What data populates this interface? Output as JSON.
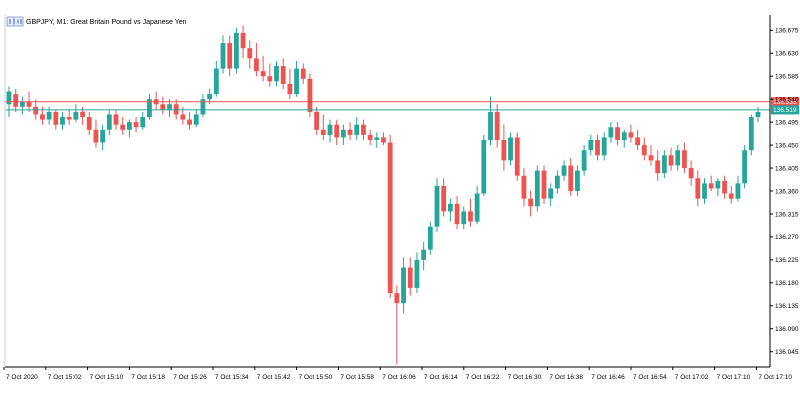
{
  "window": {
    "title": "GBPJPY, M1:  Great Britain Pound vs Japanese Yen"
  },
  "colors": {
    "bull": "#26a69a",
    "bear": "#ef5350",
    "background": "#ffffff",
    "axis": "#000000",
    "ask_line": "#ef5350",
    "bid_line": "#26a69a"
  },
  "chart_data": {
    "type": "candlestick",
    "symbol": "GBPJPY",
    "timeframe": "M1",
    "title": "GBPJPY, M1:  Great Britain Pound vs Japanese Yen",
    "ylim": [
      136.015,
      136.705
    ],
    "y_ticks": [
      "136.675",
      "136.630",
      "136.585",
      "136.540",
      "136.495",
      "136.450",
      "136.405",
      "136.360",
      "136.315",
      "136.270",
      "136.225",
      "136.180",
      "136.135",
      "136.090",
      "136.045"
    ],
    "x_ticks": [
      "7 Oct 2020",
      "7 Oct 15:02",
      "7 Oct 15:10",
      "7 Oct 15:18",
      "7 Oct 15:26",
      "7 Oct 15:34",
      "7 Oct 15:42",
      "7 Oct 15:50",
      "7 Oct 15:58",
      "7 Oct 16:06",
      "7 Oct 16:14",
      "7 Oct 16:22",
      "7 Oct 16:30",
      "7 Oct 16:38",
      "7 Oct 16:46",
      "7 Oct 16:54",
      "7 Oct 17:02",
      "7 Oct 17:10",
      "7 Oct 17:10"
    ],
    "ask_level": {
      "value": 136.535,
      "label": "136.535"
    },
    "bid_level": {
      "value": 136.519,
      "label": "136.519"
    },
    "grid": false,
    "candles": [
      {
        "o": 136.53,
        "h": 136.565,
        "l": 136.505,
        "c": 136.555
      },
      {
        "o": 136.55,
        "h": 136.56,
        "l": 136.515,
        "c": 136.525
      },
      {
        "o": 136.525,
        "h": 136.545,
        "l": 136.51,
        "c": 136.535
      },
      {
        "o": 136.535,
        "h": 136.555,
        "l": 136.515,
        "c": 136.525
      },
      {
        "o": 136.525,
        "h": 136.54,
        "l": 136.5,
        "c": 136.51
      },
      {
        "o": 136.51,
        "h": 136.525,
        "l": 136.49,
        "c": 136.5
      },
      {
        "o": 136.5,
        "h": 136.525,
        "l": 136.49,
        "c": 136.515
      },
      {
        "o": 136.515,
        "h": 136.52,
        "l": 136.48,
        "c": 136.49
      },
      {
        "o": 136.49,
        "h": 136.515,
        "l": 136.48,
        "c": 136.505
      },
      {
        "o": 136.505,
        "h": 136.52,
        "l": 136.49,
        "c": 136.5
      },
      {
        "o": 136.5,
        "h": 136.53,
        "l": 136.495,
        "c": 136.515
      },
      {
        "o": 136.515,
        "h": 136.525,
        "l": 136.49,
        "c": 136.505
      },
      {
        "o": 136.505,
        "h": 136.515,
        "l": 136.47,
        "c": 136.48
      },
      {
        "o": 136.48,
        "h": 136.5,
        "l": 136.445,
        "c": 136.455
      },
      {
        "o": 136.455,
        "h": 136.49,
        "l": 136.44,
        "c": 136.48
      },
      {
        "o": 136.48,
        "h": 136.52,
        "l": 136.47,
        "c": 136.51
      },
      {
        "o": 136.51,
        "h": 136.52,
        "l": 136.48,
        "c": 136.49
      },
      {
        "o": 136.49,
        "h": 136.505,
        "l": 136.47,
        "c": 136.48
      },
      {
        "o": 136.48,
        "h": 136.5,
        "l": 136.465,
        "c": 136.495
      },
      {
        "o": 136.495,
        "h": 136.505,
        "l": 136.475,
        "c": 136.485
      },
      {
        "o": 136.485,
        "h": 136.515,
        "l": 136.48,
        "c": 136.505
      },
      {
        "o": 136.505,
        "h": 136.55,
        "l": 136.5,
        "c": 136.54
      },
      {
        "o": 136.54,
        "h": 136.555,
        "l": 136.52,
        "c": 136.53
      },
      {
        "o": 136.53,
        "h": 136.545,
        "l": 136.51,
        "c": 136.52
      },
      {
        "o": 136.52,
        "h": 136.54,
        "l": 136.505,
        "c": 136.53
      },
      {
        "o": 136.53,
        "h": 136.54,
        "l": 136.5,
        "c": 136.51
      },
      {
        "o": 136.51,
        "h": 136.525,
        "l": 136.49,
        "c": 136.5
      },
      {
        "o": 136.5,
        "h": 136.515,
        "l": 136.48,
        "c": 136.49
      },
      {
        "o": 136.49,
        "h": 136.52,
        "l": 136.485,
        "c": 136.51
      },
      {
        "o": 136.51,
        "h": 136.55,
        "l": 136.505,
        "c": 136.54
      },
      {
        "o": 136.54,
        "h": 136.56,
        "l": 136.53,
        "c": 136.55
      },
      {
        "o": 136.55,
        "h": 136.615,
        "l": 136.545,
        "c": 136.6
      },
      {
        "o": 136.6,
        "h": 136.665,
        "l": 136.59,
        "c": 136.65
      },
      {
        "o": 136.65,
        "h": 136.665,
        "l": 136.585,
        "c": 136.6
      },
      {
        "o": 136.6,
        "h": 136.68,
        "l": 136.59,
        "c": 136.67
      },
      {
        "o": 136.67,
        "h": 136.685,
        "l": 136.62,
        "c": 136.64
      },
      {
        "o": 136.64,
        "h": 136.655,
        "l": 136.6,
        "c": 136.62
      },
      {
        "o": 136.62,
        "h": 136.65,
        "l": 136.585,
        "c": 136.595
      },
      {
        "o": 136.595,
        "h": 136.625,
        "l": 136.575,
        "c": 136.585
      },
      {
        "o": 136.585,
        "h": 136.61,
        "l": 136.565,
        "c": 136.575
      },
      {
        "o": 136.575,
        "h": 136.615,
        "l": 136.565,
        "c": 136.605
      },
      {
        "o": 136.605,
        "h": 136.62,
        "l": 136.56,
        "c": 136.57
      },
      {
        "o": 136.57,
        "h": 136.6,
        "l": 136.54,
        "c": 136.55
      },
      {
        "o": 136.55,
        "h": 136.615,
        "l": 136.545,
        "c": 136.6
      },
      {
        "o": 136.6,
        "h": 136.61,
        "l": 136.57,
        "c": 136.58
      },
      {
        "o": 136.58,
        "h": 136.59,
        "l": 136.505,
        "c": 136.515
      },
      {
        "o": 136.515,
        "h": 136.525,
        "l": 136.47,
        "c": 136.48
      },
      {
        "o": 136.48,
        "h": 136.51,
        "l": 136.46,
        "c": 136.47
      },
      {
        "o": 136.47,
        "h": 136.5,
        "l": 136.455,
        "c": 136.49
      },
      {
        "o": 136.49,
        "h": 136.5,
        "l": 136.45,
        "c": 136.465
      },
      {
        "o": 136.465,
        "h": 136.49,
        "l": 136.45,
        "c": 136.48
      },
      {
        "o": 136.48,
        "h": 136.495,
        "l": 136.46,
        "c": 136.47
      },
      {
        "o": 136.47,
        "h": 136.505,
        "l": 136.46,
        "c": 136.49
      },
      {
        "o": 136.49,
        "h": 136.5,
        "l": 136.46,
        "c": 136.47
      },
      {
        "o": 136.47,
        "h": 136.48,
        "l": 136.45,
        "c": 136.46
      },
      {
        "o": 136.46,
        "h": 136.475,
        "l": 136.445,
        "c": 136.465
      },
      {
        "o": 136.465,
        "h": 136.475,
        "l": 136.45,
        "c": 136.455
      },
      {
        "o": 136.455,
        "h": 136.47,
        "l": 136.15,
        "c": 136.16
      },
      {
        "o": 136.16,
        "h": 136.175,
        "l": 136.02,
        "c": 136.14
      },
      {
        "o": 136.14,
        "h": 136.23,
        "l": 136.12,
        "c": 136.21
      },
      {
        "o": 136.21,
        "h": 136.23,
        "l": 136.155,
        "c": 136.17
      },
      {
        "o": 136.17,
        "h": 136.24,
        "l": 136.16,
        "c": 136.225
      },
      {
        "o": 136.225,
        "h": 136.26,
        "l": 136.205,
        "c": 136.245
      },
      {
        "o": 136.245,
        "h": 136.3,
        "l": 136.235,
        "c": 136.29
      },
      {
        "o": 136.29,
        "h": 136.385,
        "l": 136.28,
        "c": 136.37
      },
      {
        "o": 136.37,
        "h": 136.385,
        "l": 136.31,
        "c": 136.32
      },
      {
        "o": 136.32,
        "h": 136.345,
        "l": 136.3,
        "c": 136.335
      },
      {
        "o": 136.335,
        "h": 136.35,
        "l": 136.285,
        "c": 136.295
      },
      {
        "o": 136.295,
        "h": 136.33,
        "l": 136.285,
        "c": 136.32
      },
      {
        "o": 136.32,
        "h": 136.345,
        "l": 136.29,
        "c": 136.3
      },
      {
        "o": 136.3,
        "h": 136.37,
        "l": 136.295,
        "c": 136.355
      },
      {
        "o": 136.355,
        "h": 136.47,
        "l": 136.35,
        "c": 136.46
      },
      {
        "o": 136.46,
        "h": 136.545,
        "l": 136.45,
        "c": 136.515
      },
      {
        "o": 136.515,
        "h": 136.53,
        "l": 136.445,
        "c": 136.46
      },
      {
        "o": 136.46,
        "h": 136.49,
        "l": 136.4,
        "c": 136.42
      },
      {
        "o": 136.42,
        "h": 136.475,
        "l": 136.41,
        "c": 136.465
      },
      {
        "o": 136.465,
        "h": 136.475,
        "l": 136.38,
        "c": 136.39
      },
      {
        "o": 136.39,
        "h": 136.405,
        "l": 136.33,
        "c": 136.345
      },
      {
        "o": 136.345,
        "h": 136.36,
        "l": 136.31,
        "c": 136.33
      },
      {
        "o": 136.33,
        "h": 136.41,
        "l": 136.32,
        "c": 136.4
      },
      {
        "o": 136.4,
        "h": 136.41,
        "l": 136.335,
        "c": 136.345
      },
      {
        "o": 136.345,
        "h": 136.375,
        "l": 136.33,
        "c": 136.365
      },
      {
        "o": 136.365,
        "h": 136.4,
        "l": 136.355,
        "c": 136.39
      },
      {
        "o": 136.39,
        "h": 136.42,
        "l": 136.38,
        "c": 136.41
      },
      {
        "o": 136.41,
        "h": 136.425,
        "l": 136.35,
        "c": 136.36
      },
      {
        "o": 136.36,
        "h": 136.41,
        "l": 136.35,
        "c": 136.4
      },
      {
        "o": 136.4,
        "h": 136.45,
        "l": 136.39,
        "c": 136.44
      },
      {
        "o": 136.44,
        "h": 136.47,
        "l": 136.43,
        "c": 136.46
      },
      {
        "o": 136.46,
        "h": 136.47,
        "l": 136.42,
        "c": 136.43
      },
      {
        "o": 136.43,
        "h": 136.475,
        "l": 136.42,
        "c": 136.465
      },
      {
        "o": 136.465,
        "h": 136.495,
        "l": 136.455,
        "c": 136.485
      },
      {
        "o": 136.485,
        "h": 136.495,
        "l": 136.45,
        "c": 136.46
      },
      {
        "o": 136.46,
        "h": 136.48,
        "l": 136.445,
        "c": 136.475
      },
      {
        "o": 136.475,
        "h": 136.49,
        "l": 136.455,
        "c": 136.465
      },
      {
        "o": 136.465,
        "h": 136.48,
        "l": 136.44,
        "c": 136.45
      },
      {
        "o": 136.45,
        "h": 136.465,
        "l": 136.42,
        "c": 136.43
      },
      {
        "o": 136.43,
        "h": 136.45,
        "l": 136.41,
        "c": 136.42
      },
      {
        "o": 136.42,
        "h": 136.44,
        "l": 136.38,
        "c": 136.395
      },
      {
        "o": 136.395,
        "h": 136.44,
        "l": 136.385,
        "c": 136.43
      },
      {
        "o": 136.43,
        "h": 136.445,
        "l": 136.4,
        "c": 136.41
      },
      {
        "o": 136.41,
        "h": 136.45,
        "l": 136.4,
        "c": 136.44
      },
      {
        "o": 136.44,
        "h": 136.455,
        "l": 136.395,
        "c": 136.405
      },
      {
        "o": 136.405,
        "h": 136.42,
        "l": 136.37,
        "c": 136.385
      },
      {
        "o": 136.385,
        "h": 136.4,
        "l": 136.33,
        "c": 136.345
      },
      {
        "o": 136.345,
        "h": 136.385,
        "l": 136.335,
        "c": 136.375
      },
      {
        "o": 136.375,
        "h": 136.39,
        "l": 136.36,
        "c": 136.365
      },
      {
        "o": 136.365,
        "h": 136.385,
        "l": 136.35,
        "c": 136.38
      },
      {
        "o": 136.38,
        "h": 136.39,
        "l": 136.345,
        "c": 136.355
      },
      {
        "o": 136.355,
        "h": 136.37,
        "l": 136.335,
        "c": 136.345
      },
      {
        "o": 136.345,
        "h": 136.39,
        "l": 136.34,
        "c": 136.375
      },
      {
        "o": 136.375,
        "h": 136.45,
        "l": 136.365,
        "c": 136.44
      },
      {
        "o": 136.44,
        "h": 136.51,
        "l": 136.43,
        "c": 136.505
      },
      {
        "o": 136.505,
        "h": 136.525,
        "l": 136.495,
        "c": 136.515
      }
    ]
  }
}
